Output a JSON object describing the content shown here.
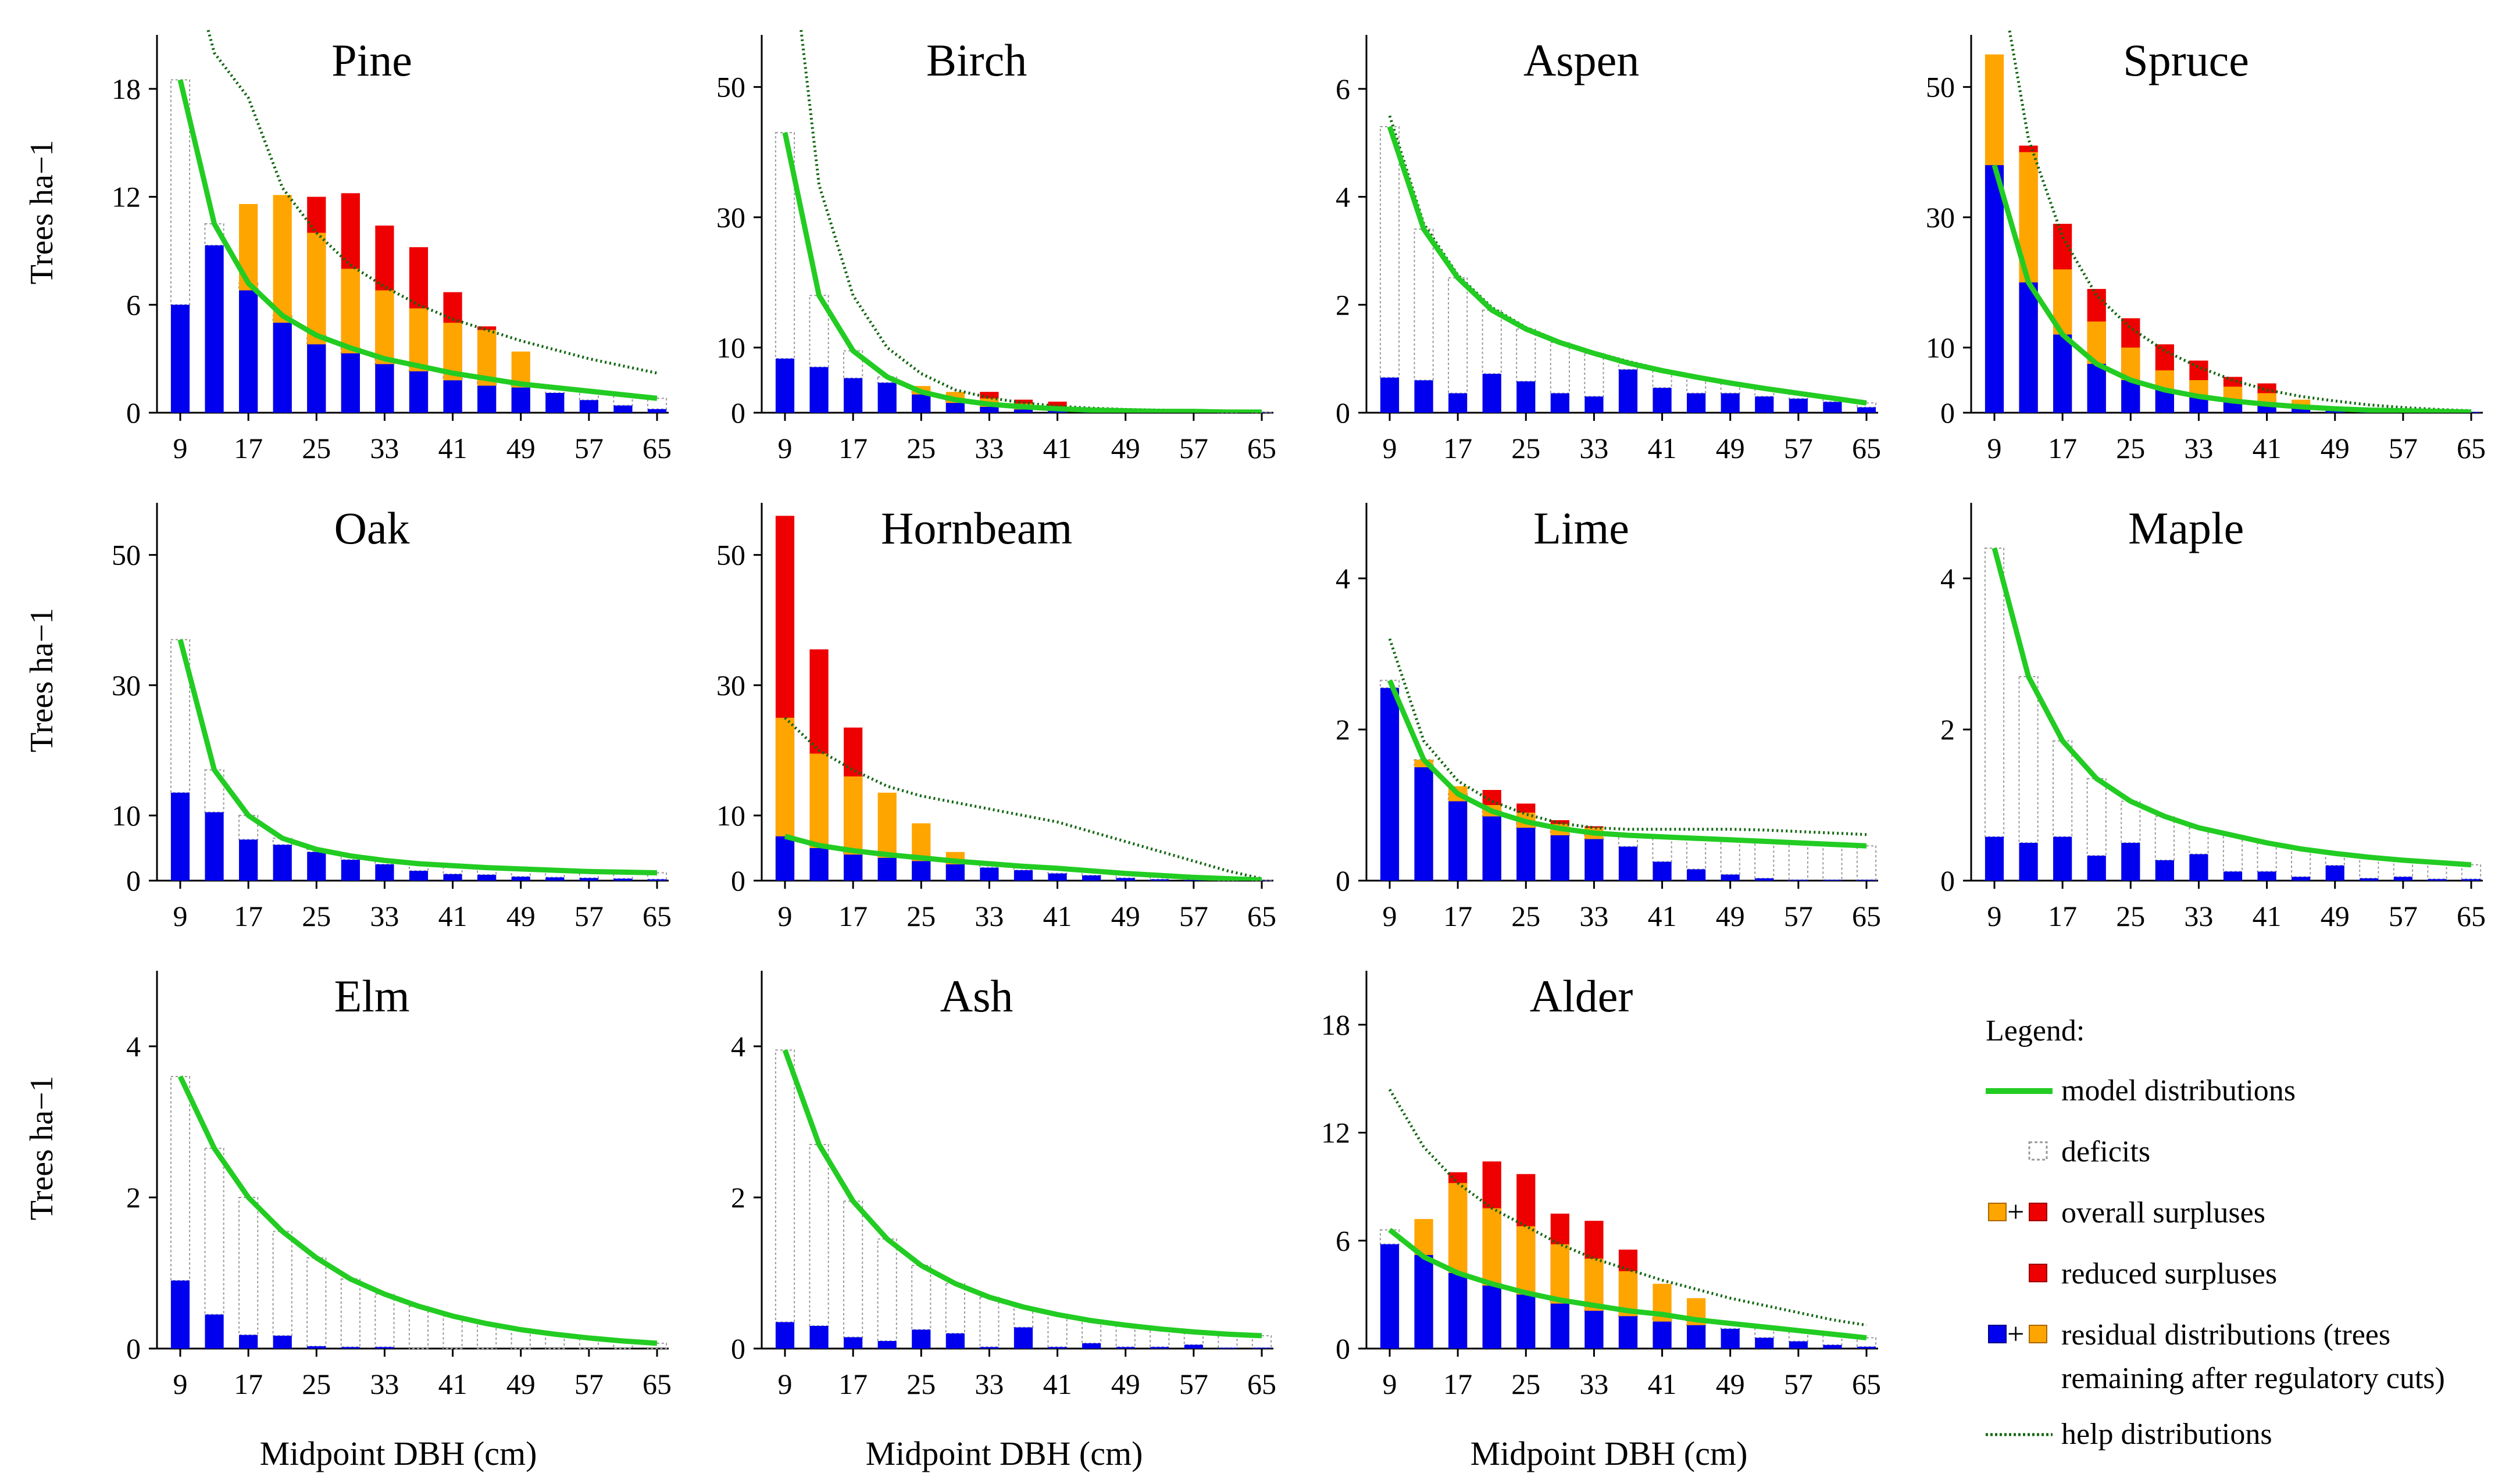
{
  "x_label": "Midpoint DBH (cm)",
  "y_label": "Trees ha−1",
  "legend": {
    "title": "Legend:",
    "items": [
      {
        "key": "model",
        "label": "model distributions"
      },
      {
        "key": "deficit",
        "label": "deficits"
      },
      {
        "key": "overall",
        "label": "overall surpluses"
      },
      {
        "key": "reduced",
        "label": "reduced surpluses"
      },
      {
        "key": "residual",
        "label": "residual distributions (trees",
        "label2": "remaining after regulatory cuts)"
      },
      {
        "key": "help",
        "label": "help distributions"
      }
    ],
    "plus_sign": "+"
  },
  "colors": {
    "residual": "#0000ee",
    "overall": "#ffa500",
    "reduced": "#ee0000",
    "model": "#22cc22",
    "help": "#116611",
    "deficit_outline": "#999999"
  },
  "chart_data": [
    {
      "type": "bar",
      "title": "Pine",
      "x": [
        9,
        13,
        17,
        21,
        25,
        29,
        33,
        37,
        41,
        45,
        49,
        53,
        57,
        61,
        65
      ],
      "x_ticks": [
        9,
        17,
        25,
        33,
        41,
        49,
        57,
        65
      ],
      "y_ticks": [
        0,
        6,
        12,
        18
      ],
      "ylim": [
        0,
        21
      ],
      "model": [
        18.5,
        10.5,
        7.2,
        5.4,
        4.3,
        3.6,
        3.0,
        2.6,
        2.2,
        1.9,
        1.6,
        1.4,
        1.2,
        1.0,
        0.8
      ],
      "residual": [
        6,
        9.3,
        6.8,
        5.0,
        3.8,
        3.3,
        2.7,
        2.3,
        1.8,
        1.5,
        1.4,
        1.1,
        0.7,
        0.4,
        0.2
      ],
      "overall": [
        0,
        0,
        11.6,
        12.1,
        10.0,
        8.0,
        6.8,
        5.8,
        5.0,
        4.6,
        3.4,
        0,
        0,
        0,
        0
      ],
      "reduced": [
        0,
        0,
        0,
        0,
        12.0,
        12.2,
        10.4,
        9.2,
        6.7,
        4.8,
        0,
        0,
        0,
        0,
        0
      ],
      "help": [
        27,
        20,
        17.5,
        12.5,
        10.0,
        8.2,
        7.0,
        6.0,
        5.2,
        4.6,
        4.0,
        3.5,
        3.0,
        2.6,
        2.2
      ]
    },
    {
      "type": "bar",
      "title": "Birch",
      "x": [
        9,
        13,
        17,
        21,
        25,
        29,
        33,
        37,
        41,
        45,
        49,
        53,
        57,
        61,
        65
      ],
      "x_ticks": [
        9,
        17,
        25,
        33,
        41,
        49,
        57,
        65
      ],
      "y_ticks": [
        0,
        10,
        30,
        50
      ],
      "ylim": [
        0,
        58
      ],
      "model": [
        43,
        18,
        9.5,
        5.5,
        3.2,
        2.0,
        1.3,
        0.9,
        0.6,
        0.4,
        0.3,
        0.2,
        0.2,
        0.1,
        0.1
      ],
      "residual": [
        8.3,
        7.0,
        5.3,
        4.6,
        2.8,
        1.5,
        0.9,
        0.5,
        0.3,
        0.2,
        0.1,
        0.1,
        0.1,
        0.05,
        0.05
      ],
      "overall": [
        0,
        0,
        0,
        0,
        4.1,
        3.2,
        2.2,
        1.4,
        0.8,
        0,
        0,
        0,
        0,
        0,
        0
      ],
      "reduced": [
        0,
        0,
        0,
        0,
        0,
        0,
        3.2,
        2.0,
        1.7,
        0,
        0,
        0,
        0,
        0,
        0
      ],
      "help": [
        80,
        35,
        18,
        10,
        6,
        3.5,
        2.3,
        1.5,
        1.0,
        0.7,
        0.5,
        0.4,
        0.3,
        0.2,
        0.1
      ]
    },
    {
      "type": "bar",
      "title": "Aspen",
      "x": [
        9,
        13,
        17,
        21,
        25,
        29,
        33,
        37,
        41,
        45,
        49,
        53,
        57,
        61,
        65
      ],
      "x_ticks": [
        9,
        17,
        25,
        33,
        41,
        49,
        57,
        65
      ],
      "y_ticks": [
        0,
        2,
        4,
        6
      ],
      "ylim": [
        0,
        7
      ],
      "model": [
        5.3,
        3.4,
        2.5,
        1.9,
        1.55,
        1.3,
        1.1,
        0.92,
        0.78,
        0.66,
        0.55,
        0.45,
        0.36,
        0.27,
        0.18
      ],
      "residual": [
        0.65,
        0.6,
        0.36,
        0.72,
        0.58,
        0.36,
        0.3,
        0.8,
        0.46,
        0.36,
        0.36,
        0.3,
        0.26,
        0.2,
        0.1
      ],
      "overall": [
        0,
        0,
        0,
        0,
        0,
        0,
        0,
        0,
        0,
        0,
        0,
        0,
        0,
        0,
        0
      ],
      "reduced": [
        0,
        0,
        0,
        0,
        0,
        0,
        0,
        0,
        0,
        0,
        0,
        0,
        0,
        0,
        0
      ],
      "help": [
        5.5,
        3.5,
        2.55,
        1.95,
        1.58,
        1.32,
        1.12,
        0.95,
        0.8,
        0.68,
        0.57,
        0.47,
        0.38,
        0.29,
        0.2
      ]
    },
    {
      "type": "bar",
      "title": "Spruce",
      "x": [
        9,
        13,
        17,
        21,
        25,
        29,
        33,
        37,
        41,
        45,
        49,
        53,
        57,
        61,
        65
      ],
      "x_ticks": [
        9,
        17,
        25,
        33,
        41,
        49,
        57,
        65
      ],
      "y_ticks": [
        0,
        10,
        30,
        50
      ],
      "ylim": [
        0,
        58
      ],
      "model": [
        38,
        20,
        12,
        7.5,
        5,
        3.5,
        2.5,
        1.8,
        1.3,
        0.9,
        0.6,
        0.4,
        0.3,
        0.2,
        0.1
      ],
      "residual": [
        38,
        20,
        12,
        7.5,
        5,
        3.5,
        2.5,
        1.8,
        1.3,
        0.9,
        0.6,
        0.4,
        0.3,
        0.2,
        0.1
      ],
      "overall": [
        55,
        40,
        22,
        14,
        10,
        6.5,
        5,
        4,
        3,
        2,
        0,
        0,
        0,
        0,
        0
      ],
      "reduced": [
        0,
        41,
        29,
        19,
        14.5,
        10.5,
        8,
        5.5,
        4.5,
        0,
        0,
        0,
        0,
        0,
        0
      ],
      "help": [
        72,
        42,
        27,
        18,
        13,
        9.5,
        7,
        5,
        3.5,
        2.5,
        1.8,
        1.2,
        0.8,
        0.5,
        0.3
      ]
    },
    {
      "type": "bar",
      "title": "Oak",
      "x": [
        9,
        13,
        17,
        21,
        25,
        29,
        33,
        37,
        41,
        45,
        49,
        53,
        57,
        61,
        65
      ],
      "x_ticks": [
        9,
        17,
        25,
        33,
        41,
        49,
        57,
        65
      ],
      "y_ticks": [
        0,
        10,
        30,
        50
      ],
      "ylim": [
        0,
        58
      ],
      "model": [
        37,
        17,
        10,
        6.5,
        4.8,
        3.8,
        3.1,
        2.6,
        2.3,
        2.0,
        1.8,
        1.6,
        1.4,
        1.3,
        1.2
      ],
      "residual": [
        13.5,
        10.5,
        6.3,
        5.5,
        4.4,
        3.2,
        2.5,
        1.5,
        1.0,
        0.9,
        0.6,
        0.5,
        0.4,
        0.3,
        0.2
      ],
      "overall": [
        0,
        0,
        0,
        0,
        0,
        0,
        0,
        0,
        0,
        0,
        0,
        0,
        0,
        0,
        0
      ],
      "reduced": [
        0,
        0,
        0,
        0,
        0,
        0,
        0,
        0,
        0,
        0,
        0,
        0,
        0,
        0,
        0
      ],
      "help": [
        37,
        17,
        10,
        6.5,
        4.8,
        3.8,
        3.1,
        2.6,
        2.3,
        2.0,
        1.8,
        1.6,
        1.4,
        1.3,
        1.2
      ]
    },
    {
      "type": "bar",
      "title": "Hornbeam",
      "x": [
        9,
        13,
        17,
        21,
        25,
        29,
        33,
        37,
        41,
        45,
        49,
        53,
        57,
        61,
        65
      ],
      "x_ticks": [
        9,
        17,
        25,
        33,
        41,
        49,
        57,
        65
      ],
      "y_ticks": [
        0,
        10,
        30,
        50
      ],
      "ylim": [
        0,
        58
      ],
      "model": [
        6.8,
        5.4,
        4.6,
        4.0,
        3.5,
        3.0,
        2.6,
        2.2,
        1.9,
        1.5,
        1.1,
        0.8,
        0.5,
        0.3,
        0.1
      ],
      "residual": [
        6.8,
        5.0,
        4.0,
        3.5,
        3.0,
        2.5,
        2.0,
        1.6,
        1.1,
        0.8,
        0.4,
        0.2,
        0.1,
        0.05,
        0.05
      ],
      "overall": [
        25,
        19.5,
        16,
        13.5,
        8.8,
        4.4,
        0,
        0,
        0,
        0,
        0,
        0,
        0,
        0,
        0
      ],
      "reduced": [
        56,
        35.5,
        23.5,
        0,
        0,
        0,
        0,
        0,
        0,
        0,
        0,
        0,
        0,
        0,
        0
      ],
      "help": [
        25,
        20,
        17,
        14.5,
        13,
        12,
        11,
        10,
        9,
        7.5,
        6,
        4.5,
        3,
        1.5,
        0.3
      ]
    },
    {
      "type": "bar",
      "title": "Lime",
      "x": [
        9,
        13,
        17,
        21,
        25,
        29,
        33,
        37,
        41,
        45,
        49,
        53,
        57,
        61,
        65
      ],
      "x_ticks": [
        9,
        17,
        25,
        33,
        41,
        49,
        57,
        65
      ],
      "y_ticks": [
        0,
        2,
        4
      ],
      "ylim": [
        0,
        5
      ],
      "model": [
        2.65,
        1.6,
        1.15,
        0.92,
        0.78,
        0.69,
        0.63,
        0.6,
        0.58,
        0.56,
        0.54,
        0.52,
        0.5,
        0.48,
        0.46
      ],
      "residual": [
        2.55,
        1.5,
        1.05,
        0.85,
        0.7,
        0.6,
        0.55,
        0.45,
        0.25,
        0.15,
        0.08,
        0.03,
        0.01,
        0.01,
        0.01
      ],
      "overall": [
        0,
        1.6,
        1.25,
        1.0,
        0.9,
        0.75,
        0.7,
        0,
        0,
        0,
        0,
        0,
        0,
        0,
        0
      ],
      "reduced": [
        0,
        0,
        1.25,
        1.2,
        1.02,
        0.8,
        0.72,
        0,
        0,
        0,
        0,
        0,
        0,
        0,
        0
      ],
      "help": [
        3.2,
        1.85,
        1.32,
        1.05,
        0.88,
        0.76,
        0.7,
        0.68,
        0.68,
        0.68,
        0.68,
        0.67,
        0.65,
        0.63,
        0.61
      ]
    },
    {
      "type": "bar",
      "title": "Maple",
      "x": [
        9,
        13,
        17,
        21,
        25,
        29,
        33,
        37,
        41,
        45,
        49,
        53,
        57,
        61,
        65
      ],
      "x_ticks": [
        9,
        17,
        25,
        33,
        41,
        49,
        57,
        65
      ],
      "y_ticks": [
        0,
        2,
        4
      ],
      "ylim": [
        0,
        5
      ],
      "model": [
        4.4,
        2.7,
        1.85,
        1.35,
        1.05,
        0.85,
        0.7,
        0.6,
        0.5,
        0.42,
        0.36,
        0.31,
        0.27,
        0.24,
        0.21
      ],
      "residual": [
        0.58,
        0.5,
        0.58,
        0.33,
        0.5,
        0.27,
        0.35,
        0.12,
        0.12,
        0.05,
        0.2,
        0.03,
        0.05,
        0.02,
        0.02
      ],
      "overall": [
        0,
        0,
        0,
        0,
        0,
        0,
        0,
        0,
        0,
        0,
        0,
        0,
        0,
        0,
        0
      ],
      "reduced": [
        0,
        0,
        0,
        0,
        0,
        0,
        0,
        0,
        0,
        0,
        0,
        0,
        0,
        0,
        0
      ],
      "help": [
        4.4,
        2.7,
        1.85,
        1.35,
        1.05,
        0.85,
        0.7,
        0.6,
        0.5,
        0.42,
        0.36,
        0.31,
        0.27,
        0.24,
        0.21
      ]
    },
    {
      "type": "bar",
      "title": "Elm",
      "x": [
        9,
        13,
        17,
        21,
        25,
        29,
        33,
        37,
        41,
        45,
        49,
        53,
        57,
        61,
        65
      ],
      "x_ticks": [
        9,
        17,
        25,
        33,
        41,
        49,
        57,
        65
      ],
      "y_ticks": [
        0,
        2,
        4
      ],
      "ylim": [
        0,
        5
      ],
      "model": [
        3.6,
        2.65,
        2.0,
        1.55,
        1.2,
        0.92,
        0.72,
        0.56,
        0.43,
        0.33,
        0.25,
        0.19,
        0.14,
        0.1,
        0.07
      ],
      "residual": [
        0.9,
        0.45,
        0.18,
        0.17,
        0.03,
        0.02,
        0.02,
        0,
        0,
        0,
        0,
        0,
        0,
        0,
        0
      ],
      "overall": [
        0,
        0,
        0,
        0,
        0,
        0,
        0,
        0,
        0,
        0,
        0,
        0,
        0,
        0,
        0
      ],
      "reduced": [
        0,
        0,
        0,
        0,
        0,
        0,
        0,
        0,
        0,
        0,
        0,
        0,
        0,
        0,
        0
      ],
      "help": [
        3.6,
        2.65,
        2.0,
        1.55,
        1.2,
        0.92,
        0.72,
        0.56,
        0.43,
        0.33,
        0.25,
        0.19,
        0.14,
        0.1,
        0.07
      ]
    },
    {
      "type": "bar",
      "title": "Ash",
      "x": [
        9,
        13,
        17,
        21,
        25,
        29,
        33,
        37,
        41,
        45,
        49,
        53,
        57,
        61,
        65
      ],
      "x_ticks": [
        9,
        17,
        25,
        33,
        41,
        49,
        57,
        65
      ],
      "y_ticks": [
        0,
        2,
        4
      ],
      "ylim": [
        0,
        5
      ],
      "model": [
        3.95,
        2.7,
        1.95,
        1.45,
        1.1,
        0.86,
        0.68,
        0.55,
        0.45,
        0.37,
        0.31,
        0.26,
        0.22,
        0.19,
        0.17
      ],
      "residual": [
        0.35,
        0.3,
        0.15,
        0.1,
        0.25,
        0.2,
        0.02,
        0.28,
        0.02,
        0.07,
        0.02,
        0.02,
        0.05,
        0.01,
        0.01
      ],
      "overall": [
        0,
        0,
        0,
        0,
        0,
        0,
        0,
        0,
        0,
        0,
        0,
        0,
        0,
        0,
        0
      ],
      "reduced": [
        0,
        0,
        0,
        0,
        0,
        0,
        0,
        0,
        0,
        0,
        0,
        0,
        0,
        0,
        0
      ],
      "help": [
        3.95,
        2.7,
        1.95,
        1.45,
        1.1,
        0.86,
        0.68,
        0.55,
        0.45,
        0.37,
        0.31,
        0.26,
        0.22,
        0.19,
        0.17
      ]
    },
    {
      "type": "bar",
      "title": "Alder",
      "x": [
        9,
        13,
        17,
        21,
        25,
        29,
        33,
        37,
        41,
        45,
        49,
        53,
        57,
        61,
        65
      ],
      "x_ticks": [
        9,
        17,
        25,
        33,
        41,
        49,
        57,
        65
      ],
      "y_ticks": [
        0,
        6,
        12,
        18
      ],
      "ylim": [
        0,
        21
      ],
      "model": [
        6.6,
        5.1,
        4.2,
        3.6,
        3.1,
        2.7,
        2.4,
        2.1,
        1.9,
        1.6,
        1.4,
        1.2,
        1.0,
        0.8,
        0.6
      ],
      "residual": [
        5.8,
        5.2,
        4.2,
        3.5,
        3.0,
        2.5,
        2.1,
        1.8,
        1.5,
        1.3,
        1.1,
        0.6,
        0.4,
        0.2,
        0.1
      ],
      "overall": [
        0,
        7.2,
        9.2,
        7.8,
        6.8,
        5.8,
        5.0,
        4.3,
        3.6,
        2.8,
        0,
        0,
        0,
        0,
        0
      ],
      "reduced": [
        0,
        0,
        9.8,
        10.4,
        9.7,
        7.5,
        7.1,
        5.5,
        0,
        0,
        0,
        0,
        0,
        0,
        0
      ],
      "help": [
        14.4,
        11.2,
        9.2,
        7.8,
        6.8,
        5.8,
        5.0,
        4.4,
        3.8,
        3.3,
        2.8,
        2.4,
        2.0,
        1.6,
        1.3
      ]
    }
  ]
}
